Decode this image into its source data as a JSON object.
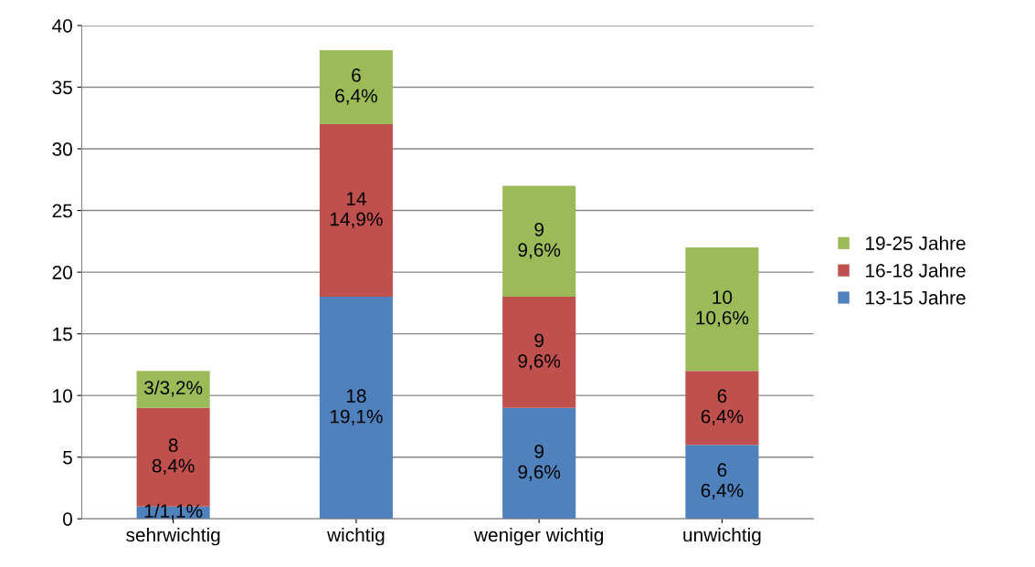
{
  "chart_data": {
    "type": "bar",
    "stacked": true,
    "categories": [
      "sehrwichtig",
      "wichtig",
      "weniger wichtig",
      "unwichtig"
    ],
    "series": [
      {
        "name": "13-15 Jahre",
        "color": "#4f81bd",
        "values": [
          1,
          18,
          9,
          6
        ],
        "value_labels": [
          "1/1,1%",
          "18\n19,1%",
          "9\n9,6%",
          "6\n6,4%"
        ]
      },
      {
        "name": "16-18 Jahre",
        "color": "#c0504d",
        "values": [
          8,
          14,
          9,
          6
        ],
        "value_labels": [
          "8\n8,4%",
          "14\n14,9%",
          "9\n9,6%",
          "6\n6,4%"
        ]
      },
      {
        "name": "19-25 Jahre",
        "color": "#9bbb59",
        "values": [
          3,
          6,
          9,
          10
        ],
        "value_labels": [
          "3/3,2%",
          "6\n6,4%",
          "9\n9,6%",
          "10\n10,6%"
        ]
      }
    ],
    "ylim": [
      0,
      40
    ],
    "yticks": [
      0,
      5,
      10,
      15,
      20,
      25,
      30,
      35,
      40
    ],
    "grid": "y",
    "legend": "right"
  }
}
